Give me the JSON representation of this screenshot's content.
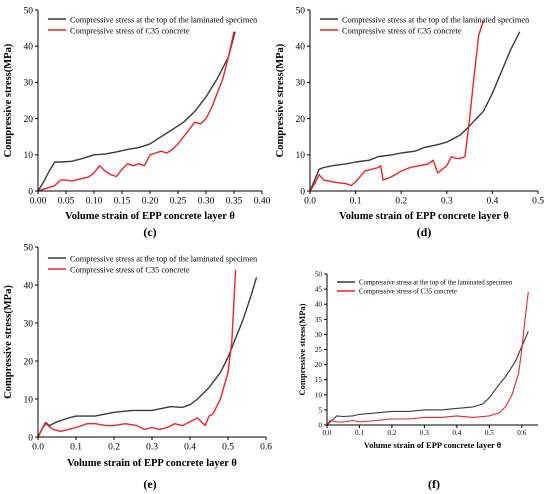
{
  "colors": {
    "series_top": "#3a3a3a",
    "series_c35": "#e8262b",
    "axis": "#000000"
  },
  "chart_data": [
    {
      "panel": "(c)",
      "type": "line",
      "xlabel": "Volume strain of EPP concrete layer θ",
      "ylabel": "Compressive stress(MPa)",
      "xlim": [
        0,
        0.4
      ],
      "ylim": [
        0,
        50
      ],
      "xticks": [
        "0.00",
        "0.05",
        "0.10",
        "0.15",
        "0.20",
        "0.25",
        "0.30",
        "0.35",
        "0.40"
      ],
      "yticks": [
        "0",
        "10",
        "20",
        "30",
        "40",
        "50"
      ],
      "legend_position": "top-left",
      "series": [
        {
          "name": "Compressive stress at the top of the laminated specimen",
          "x": [
            0,
            0.01,
            0.02,
            0.03,
            0.04,
            0.06,
            0.08,
            0.1,
            0.12,
            0.14,
            0.16,
            0.18,
            0.2,
            0.22,
            0.24,
            0.26,
            0.28,
            0.3,
            0.32,
            0.34,
            0.352
          ],
          "y": [
            0,
            2.5,
            5.5,
            8.0,
            8.0,
            8.2,
            9.0,
            10.0,
            10.2,
            10.8,
            11.5,
            12.0,
            13.0,
            15.0,
            17.0,
            19.0,
            22.0,
            26.0,
            31.0,
            37.0,
            44.0
          ]
        },
        {
          "name": "Compressive stress of C35 concrete",
          "x": [
            0,
            0.01,
            0.02,
            0.03,
            0.04,
            0.05,
            0.06,
            0.08,
            0.09,
            0.1,
            0.11,
            0.12,
            0.13,
            0.14,
            0.15,
            0.16,
            0.17,
            0.18,
            0.19,
            0.2,
            0.21,
            0.22,
            0.23,
            0.24,
            0.25,
            0.26,
            0.27,
            0.28,
            0.29,
            0.3,
            0.31,
            0.32,
            0.33,
            0.34,
            0.35
          ],
          "y": [
            0,
            0.5,
            1.0,
            1.5,
            3.0,
            3.0,
            2.8,
            3.5,
            3.8,
            5.0,
            7.0,
            5.5,
            4.5,
            4.0,
            6.0,
            7.5,
            7.0,
            7.5,
            7.0,
            10.0,
            10.5,
            11.0,
            10.5,
            11.5,
            13.0,
            15.0,
            17.0,
            19.0,
            18.5,
            20.0,
            23.0,
            27.0,
            31.0,
            37.0,
            44.0
          ]
        }
      ]
    },
    {
      "panel": "(d)",
      "type": "line",
      "xlabel": "Volume strain of EPP concrete layer θ",
      "ylabel": "Compressive stress(MPa)",
      "xlim": [
        0,
        0.5
      ],
      "ylim": [
        0,
        50
      ],
      "xticks": [
        "0.0",
        "0.1",
        "0.2",
        "0.3",
        "0.4",
        "0.5"
      ],
      "yticks": [
        "0",
        "10",
        "20",
        "30",
        "40",
        "50"
      ],
      "legend_position": "top-left",
      "series": [
        {
          "name": "Compressive stress at the top of the laminated specimen",
          "x": [
            0,
            0.01,
            0.02,
            0.03,
            0.05,
            0.08,
            0.1,
            0.13,
            0.15,
            0.18,
            0.2,
            0.23,
            0.25,
            0.28,
            0.3,
            0.33,
            0.35,
            0.38,
            0.4,
            0.42,
            0.44,
            0.46
          ],
          "y": [
            0,
            3.0,
            6.0,
            6.5,
            7.0,
            7.5,
            8.0,
            8.5,
            9.5,
            10.0,
            10.5,
            11.0,
            12.0,
            12.8,
            13.5,
            15.5,
            18.0,
            22.0,
            27.0,
            33.0,
            39.0,
            44.0
          ]
        },
        {
          "name": "Compressive stress of C35 concrete",
          "x": [
            0,
            0.01,
            0.02,
            0.03,
            0.05,
            0.08,
            0.09,
            0.1,
            0.12,
            0.15,
            0.155,
            0.16,
            0.18,
            0.2,
            0.22,
            0.24,
            0.26,
            0.27,
            0.28,
            0.3,
            0.31,
            0.32,
            0.33,
            0.34,
            0.35,
            0.36,
            0.37,
            0.38
          ],
          "y": [
            0,
            2.0,
            4.5,
            3.0,
            2.5,
            2.0,
            1.5,
            2.5,
            5.5,
            6.5,
            7.0,
            3.0,
            4.0,
            5.5,
            6.5,
            7.0,
            7.5,
            8.5,
            5.0,
            7.0,
            9.5,
            9.0,
            9.0,
            9.5,
            20.0,
            32.0,
            43.0,
            47.0
          ]
        }
      ]
    },
    {
      "panel": "(e)",
      "type": "line",
      "xlabel": "Volume strain of EPP concrete layer θ",
      "ylabel": "Compressive stress(MPa)",
      "xlim": [
        0,
        0.6
      ],
      "ylim": [
        0,
        50
      ],
      "xticks": [
        "0.0",
        "0.1",
        "0.2",
        "0.3",
        "0.4",
        "0.5",
        "0.6"
      ],
      "yticks": [
        "0",
        "10",
        "20",
        "30",
        "40",
        "50"
      ],
      "legend_position": "top-left",
      "series": [
        {
          "name": "Compressive stress at the top of the laminated specimen",
          "x": [
            0,
            0.01,
            0.02,
            0.03,
            0.05,
            0.08,
            0.1,
            0.15,
            0.2,
            0.25,
            0.3,
            0.35,
            0.38,
            0.4,
            0.42,
            0.45,
            0.48,
            0.5,
            0.52,
            0.54,
            0.56,
            0.575
          ],
          "y": [
            0,
            2.0,
            3.8,
            3.0,
            4.0,
            5.0,
            5.5,
            5.5,
            6.5,
            7.0,
            7.0,
            8.0,
            7.8,
            8.5,
            10.0,
            13.0,
            17.0,
            21.0,
            26.0,
            31.0,
            37.0,
            42.0
          ]
        },
        {
          "name": "Compressive stress of C35 concrete",
          "x": [
            0,
            0.01,
            0.02,
            0.04,
            0.06,
            0.08,
            0.1,
            0.13,
            0.15,
            0.18,
            0.2,
            0.23,
            0.26,
            0.28,
            0.3,
            0.32,
            0.34,
            0.36,
            0.38,
            0.4,
            0.42,
            0.44,
            0.45,
            0.46,
            0.48,
            0.5,
            0.51,
            0.52
          ],
          "y": [
            0,
            2.0,
            3.5,
            2.0,
            1.5,
            2.0,
            2.5,
            3.5,
            3.5,
            3.0,
            3.0,
            3.5,
            3.0,
            2.0,
            2.5,
            2.0,
            2.5,
            3.5,
            3.0,
            4.0,
            5.0,
            3.0,
            5.5,
            6.0,
            10.0,
            17.0,
            25.0,
            44.0
          ]
        }
      ]
    },
    {
      "panel": "(f)",
      "type": "line",
      "xlabel": "Volume strain of EPP concrete layer θ",
      "ylabel": "Compressive stress(MPa)",
      "xlim": [
        0,
        0.65
      ],
      "ylim": [
        0,
        50
      ],
      "xticks": [
        "0.0",
        "0.1",
        "0.2",
        "0.3",
        "0.4",
        "0.5",
        "0.6"
      ],
      "yticks": [
        "0",
        "5",
        "10",
        "15",
        "20",
        "25",
        "30",
        "35",
        "40",
        "45",
        "50"
      ],
      "legend_position": "top-left",
      "series": [
        {
          "name": "Compressive stress at the top of the laminated specimen",
          "x": [
            0,
            0.01,
            0.02,
            0.03,
            0.05,
            0.08,
            0.1,
            0.15,
            0.2,
            0.25,
            0.3,
            0.35,
            0.4,
            0.45,
            0.48,
            0.5,
            0.52,
            0.55,
            0.58,
            0.6,
            0.62
          ],
          "y": [
            0,
            1.0,
            2.0,
            3.0,
            2.8,
            3.0,
            3.5,
            4.0,
            4.5,
            4.5,
            5.0,
            5.0,
            5.5,
            6.0,
            7.0,
            9.0,
            12.0,
            16.0,
            21.0,
            26.0,
            31.0
          ]
        },
        {
          "name": "Compressive stress of C35 concrete",
          "x": [
            0,
            0.01,
            0.03,
            0.05,
            0.08,
            0.1,
            0.15,
            0.2,
            0.25,
            0.3,
            0.35,
            0.4,
            0.45,
            0.5,
            0.53,
            0.55,
            0.57,
            0.59,
            0.6,
            0.61,
            0.62
          ],
          "y": [
            0,
            1.5,
            1.0,
            1.0,
            1.5,
            1.0,
            1.5,
            2.0,
            2.0,
            2.5,
            2.5,
            3.0,
            2.5,
            3.0,
            4.0,
            6.0,
            10.0,
            17.0,
            25.0,
            35.0,
            44.0
          ]
        }
      ]
    }
  ],
  "panels_meta": [
    {
      "label": "(c)"
    },
    {
      "label": "(d)"
    },
    {
      "label": "(e)"
    },
    {
      "label": "(f)"
    }
  ]
}
